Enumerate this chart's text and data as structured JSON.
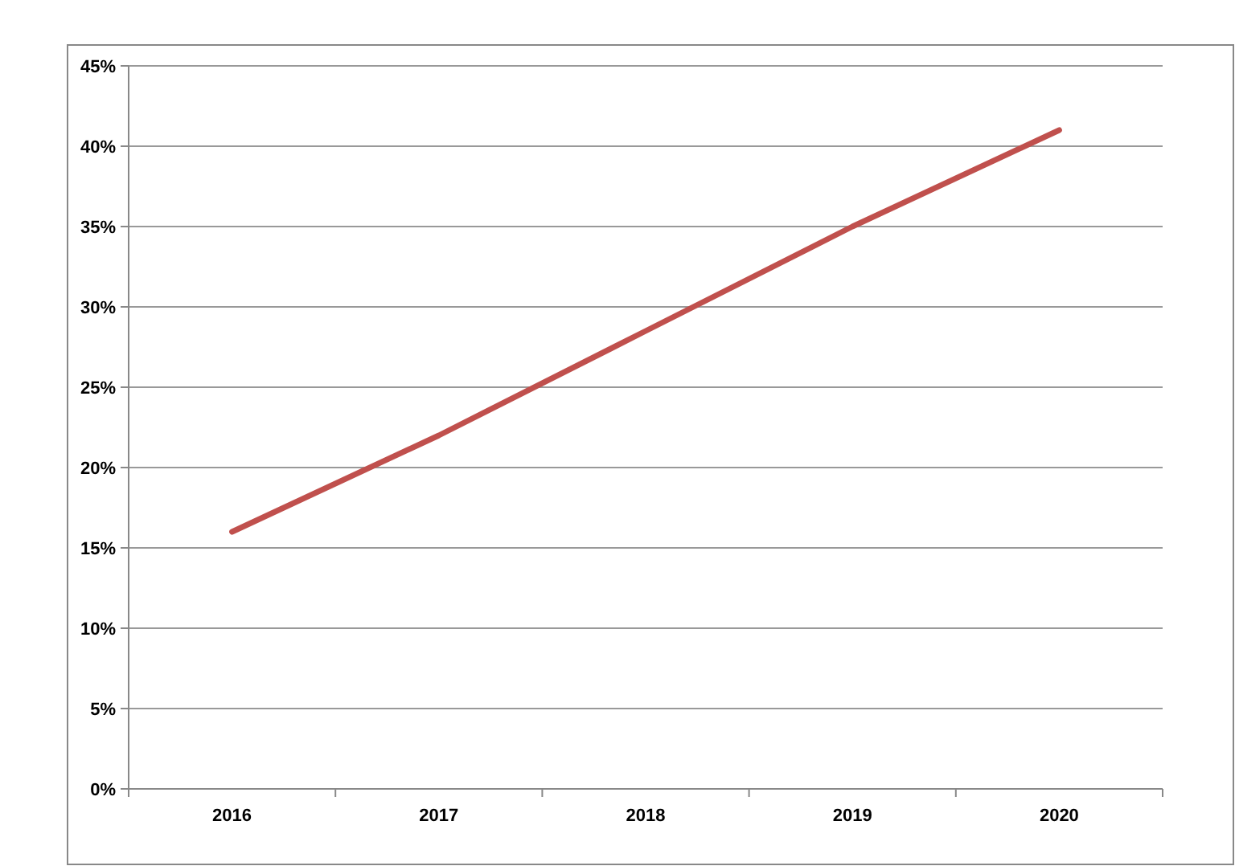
{
  "chart_data": {
    "type": "line",
    "categories": [
      "2016",
      "2017",
      "2018",
      "2019",
      "2020"
    ],
    "series": [
      {
        "color": "#c0504d",
        "values": [
          16,
          22,
          28.5,
          35,
          41
        ]
      }
    ],
    "ylim": [
      0,
      45
    ],
    "yticks": [
      {
        "value": 0,
        "label": "0%"
      },
      {
        "value": 5,
        "label": "5%"
      },
      {
        "value": 10,
        "label": "10%"
      },
      {
        "value": 15,
        "label": "15%"
      },
      {
        "value": 20,
        "label": "20%"
      },
      {
        "value": 25,
        "label": "25%"
      },
      {
        "value": 30,
        "label": "30%"
      },
      {
        "value": 35,
        "label": "35%"
      },
      {
        "value": 40,
        "label": "40%"
      },
      {
        "value": 45,
        "label": "45%"
      }
    ],
    "grid": "y",
    "marker": "none",
    "line_style": "solid"
  }
}
